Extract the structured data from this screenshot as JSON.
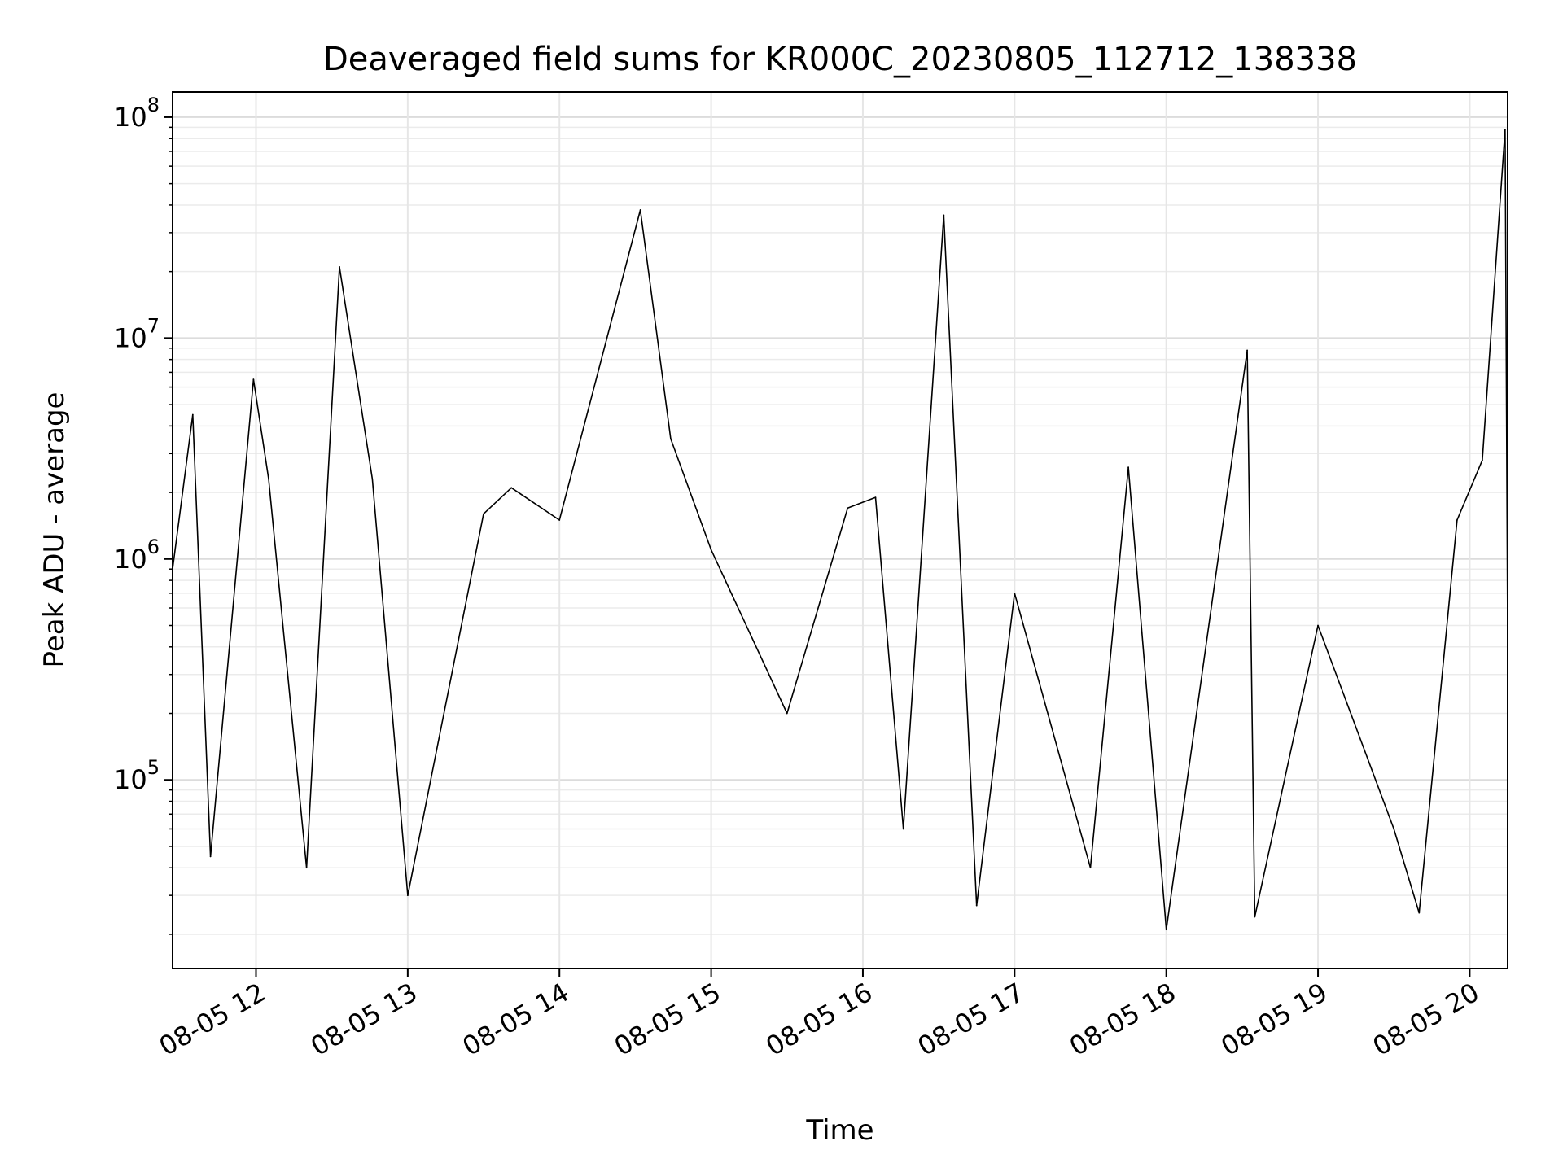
{
  "chart_data": {
    "type": "line",
    "title": "Deaveraged field sums for KR000C_20230805_112712_138338",
    "xlabel": "Time",
    "ylabel": "Peak ADU - average",
    "x_range": [
      "2023-08-05 11:27",
      "2023-08-05 20:15"
    ],
    "y_scale": "log",
    "ylim": [
      14000,
      130000000
    ],
    "grid": true,
    "x_ticks": [
      {
        "t": "2023-08-05 12:00",
        "label": "08-05 12"
      },
      {
        "t": "2023-08-05 13:00",
        "label": "08-05 13"
      },
      {
        "t": "2023-08-05 14:00",
        "label": "08-05 14"
      },
      {
        "t": "2023-08-05 15:00",
        "label": "08-05 15"
      },
      {
        "t": "2023-08-05 16:00",
        "label": "08-05 16"
      },
      {
        "t": "2023-08-05 17:00",
        "label": "08-05 17"
      },
      {
        "t": "2023-08-05 18:00",
        "label": "08-05 18"
      },
      {
        "t": "2023-08-05 19:00",
        "label": "08-05 19"
      },
      {
        "t": "2023-08-05 20:00",
        "label": "08-05 20"
      }
    ],
    "y_ticks": [
      {
        "value": 100000,
        "base": "10",
        "exp": "5"
      },
      {
        "value": 1000000,
        "base": "10",
        "exp": "6"
      },
      {
        "value": 10000000,
        "base": "10",
        "exp": "7"
      },
      {
        "value": 100000000,
        "base": "10",
        "exp": "8"
      }
    ],
    "series": [
      {
        "color": "#000000",
        "points": [
          {
            "t": "2023-08-05 11:27",
            "y": 900000
          },
          {
            "t": "2023-08-05 11:35",
            "y": 4500000
          },
          {
            "t": "2023-08-05 11:42",
            "y": 45000
          },
          {
            "t": "2023-08-05 11:59",
            "y": 6500000
          },
          {
            "t": "2023-08-05 12:05",
            "y": 2300000
          },
          {
            "t": "2023-08-05 12:20",
            "y": 40000
          },
          {
            "t": "2023-08-05 12:33",
            "y": 21000000
          },
          {
            "t": "2023-08-05 12:46",
            "y": 2300000
          },
          {
            "t": "2023-08-05 13:00",
            "y": 30000
          },
          {
            "t": "2023-08-05 13:30",
            "y": 1600000
          },
          {
            "t": "2023-08-05 13:41",
            "y": 2100000
          },
          {
            "t": "2023-08-05 14:00",
            "y": 1500000
          },
          {
            "t": "2023-08-05 14:32",
            "y": 38000000
          },
          {
            "t": "2023-08-05 14:44",
            "y": 3500000
          },
          {
            "t": "2023-08-05 15:00",
            "y": 1100000
          },
          {
            "t": "2023-08-05 15:30",
            "y": 200000
          },
          {
            "t": "2023-08-05 15:54",
            "y": 1700000
          },
          {
            "t": "2023-08-05 16:05",
            "y": 1900000
          },
          {
            "t": "2023-08-05 16:16",
            "y": 60000
          },
          {
            "t": "2023-08-05 16:32",
            "y": 36000000
          },
          {
            "t": "2023-08-05 16:45",
            "y": 27000
          },
          {
            "t": "2023-08-05 17:00",
            "y": 700000
          },
          {
            "t": "2023-08-05 17:30",
            "y": 40000
          },
          {
            "t": "2023-08-05 17:45",
            "y": 2600000
          },
          {
            "t": "2023-08-05 18:00",
            "y": 21000
          },
          {
            "t": "2023-08-05 18:32",
            "y": 8800000
          },
          {
            "t": "2023-08-05 18:35",
            "y": 24000
          },
          {
            "t": "2023-08-05 19:00",
            "y": 500000
          },
          {
            "t": "2023-08-05 19:30",
            "y": 60000
          },
          {
            "t": "2023-08-05 19:40",
            "y": 25000
          },
          {
            "t": "2023-08-05 19:55",
            "y": 1500000
          },
          {
            "t": "2023-08-05 20:05",
            "y": 2800000
          },
          {
            "t": "2023-08-05 20:14",
            "y": 88000000
          },
          {
            "t": "2023-08-05 20:15",
            "y": 450000
          }
        ]
      }
    ]
  }
}
